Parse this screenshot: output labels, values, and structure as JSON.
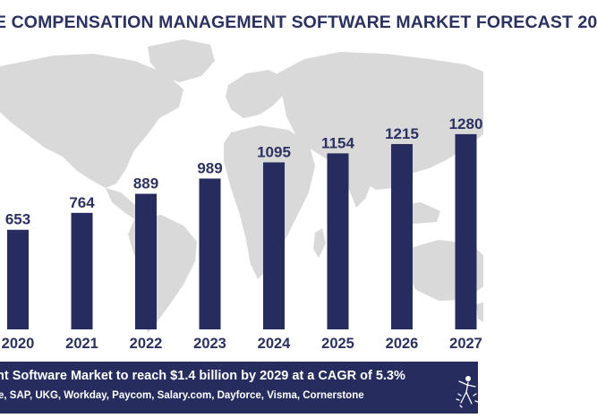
{
  "header": {
    "title": "E COMPENSATION MANAGEMENT SOFTWARE MARKET FORECAST 20"
  },
  "footer": {
    "headline": "nt Software Market to reach $1.4 billion by 2029 at a CAGR of 5.3%",
    "vendors": "e, SAP, UKG, Workday, Paycom, Salary.com, Dayforce, Visma, Cornerstone"
  },
  "colors": {
    "bar": "#262d5e",
    "map": "#d9d9d9",
    "text": "#2b3160",
    "footer_bg": "#262d5e"
  },
  "icons": {
    "logo": "star-figure-logo-icon",
    "background": "world-map-icon"
  },
  "chart_data": {
    "type": "bar",
    "title": "E COMPENSATION MANAGEMENT SOFTWARE MARKET FORECAST 20",
    "categories": [
      "2020",
      "2021",
      "2022",
      "2023",
      "2024",
      "2025",
      "2026",
      "2027"
    ],
    "values": [
      653,
      764,
      889,
      989,
      1095,
      1154,
      1215,
      1280
    ],
    "data_labels": [
      "653",
      "764",
      "889",
      "989",
      "1095",
      "1154",
      "1215",
      "1280"
    ],
    "ylim": [
      0,
      1500
    ],
    "grid": false,
    "legend": "none"
  }
}
